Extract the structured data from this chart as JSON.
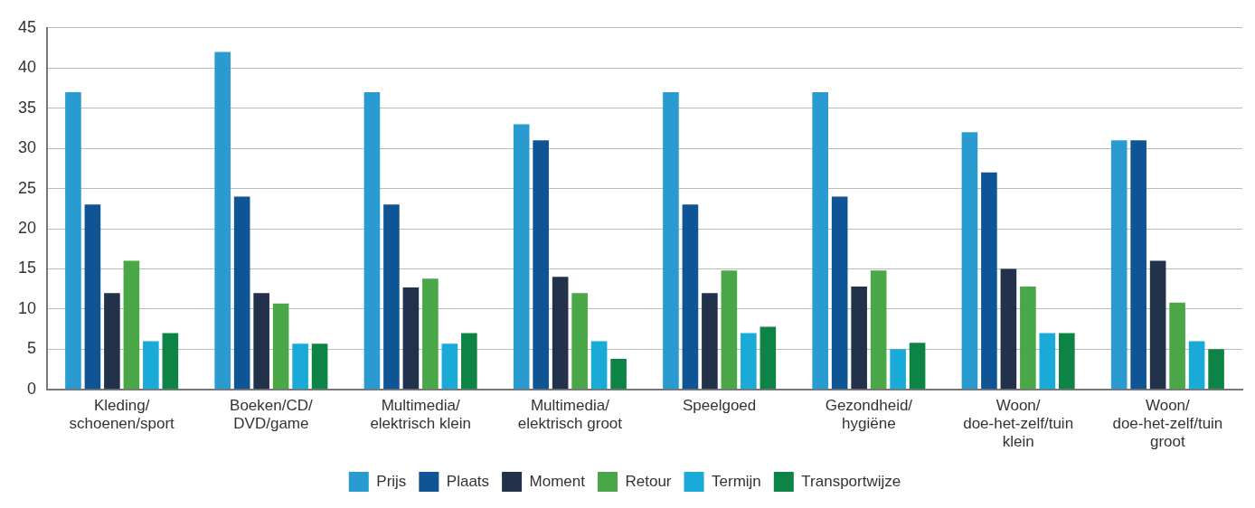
{
  "chart_data": {
    "type": "bar",
    "categories": [
      "Kleding/\nschoenen/sport",
      "Boeken/CD/\nDVD/game",
      "Multimedia/\nelektrisch klein",
      "Multimedia/\nelektrisch groot",
      "Speelgoed",
      "Gezondheid/\nhygiëne",
      "Woon/\ndoe-het-zelf/tuin\nklein",
      "Woon/\ndoe-het-zelf/tuin\ngroot"
    ],
    "series": [
      {
        "name": "Prijs",
        "color": "#2a9bd0",
        "values": [
          37,
          42,
          37,
          33,
          37,
          37,
          32,
          31
        ]
      },
      {
        "name": "Plaats",
        "color": "#0f5596",
        "values": [
          23,
          24,
          23,
          31,
          23,
          24,
          27,
          31
        ]
      },
      {
        "name": "Moment",
        "color": "#22324a",
        "values": [
          12,
          12,
          12.7,
          14,
          12,
          12.8,
          15,
          16
        ]
      },
      {
        "name": "Retour",
        "color": "#4aa748",
        "values": [
          16,
          10.7,
          13.8,
          12,
          14.8,
          14.8,
          12.8,
          10.8
        ]
      },
      {
        "name": "Termijn",
        "color": "#1aaad8",
        "values": [
          6,
          5.7,
          5.7,
          6,
          7,
          5,
          7,
          6
        ]
      },
      {
        "name": "Transportwijze",
        "color": "#0d8446",
        "values": [
          7,
          5.7,
          7,
          3.8,
          7.8,
          5.8,
          7,
          5
        ]
      }
    ],
    "ylim": [
      0,
      45
    ],
    "yticks": [
      0,
      5,
      10,
      15,
      20,
      25,
      30,
      35,
      40,
      45
    ],
    "grid": "y",
    "legend": "bottom"
  }
}
